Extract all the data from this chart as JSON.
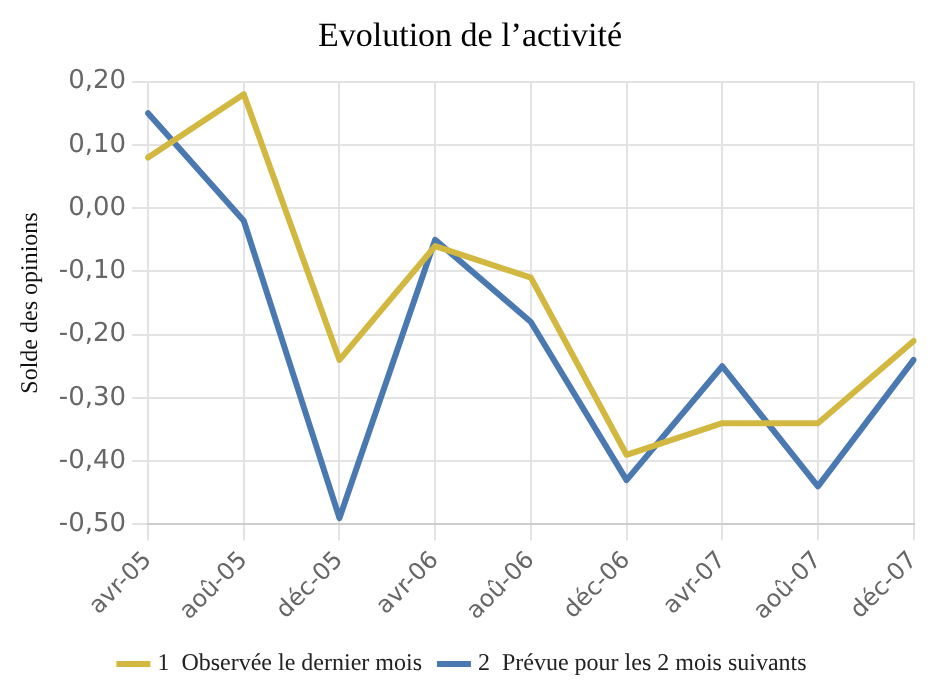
{
  "chart_data": {
    "type": "line",
    "title": "Evolution de l’activité",
    "ylabel": "Solde des opinions",
    "categories": [
      "avr-05",
      "aoû-05",
      "déc-05",
      "avr-06",
      "aoû-06",
      "déc-06",
      "avr-07",
      "aoû-07",
      "déc-07"
    ],
    "series": [
      {
        "name": "1  Observée le dernier mois",
        "color": "#d2b840",
        "values": [
          0.08,
          0.18,
          -0.24,
          -0.06,
          -0.11,
          -0.39,
          -0.34,
          -0.34,
          -0.21
        ]
      },
      {
        "name": "2  Prévue pour les 2 mois suivants",
        "color": "#4a78b0",
        "values": [
          0.15,
          -0.02,
          -0.49,
          -0.05,
          -0.18,
          -0.43,
          -0.25,
          -0.44,
          -0.24
        ]
      }
    ],
    "ylim": [
      -0.5,
      0.2
    ],
    "yticks": [
      {
        "value": -0.5,
        "label": "-0,50"
      },
      {
        "value": -0.4,
        "label": "-0,40"
      },
      {
        "value": -0.3,
        "label": "-0,30"
      },
      {
        "value": -0.2,
        "label": "-0,20"
      },
      {
        "value": -0.1,
        "label": "-0,10"
      },
      {
        "value": 0,
        "label": "0,00"
      },
      {
        "value": 0.1,
        "label": "0,10"
      },
      {
        "value": 0.2,
        "label": "0,20"
      }
    ],
    "grid": true,
    "legend": "bottom",
    "marker": "none",
    "line_style": "solid"
  }
}
